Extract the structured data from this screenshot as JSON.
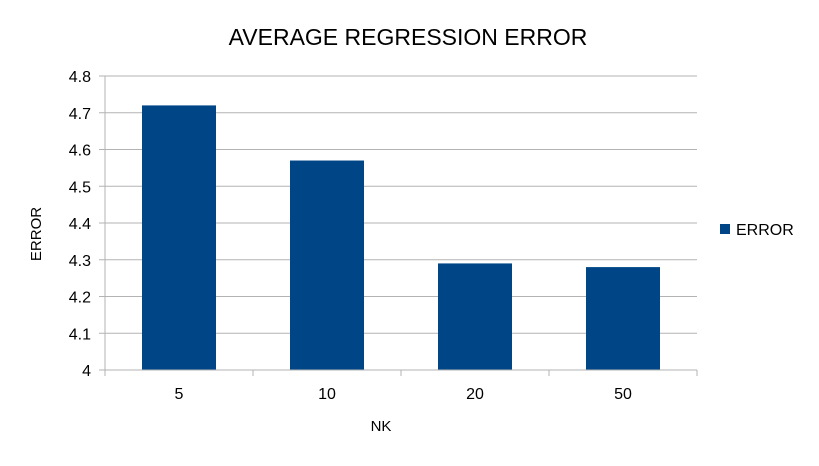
{
  "chart_data": {
    "type": "bar",
    "title": "AVERAGE REGRESSION ERROR",
    "xlabel": "NK",
    "ylabel": "ERROR",
    "categories": [
      "5",
      "10",
      "20",
      "50"
    ],
    "series": [
      {
        "name": "ERROR",
        "values": [
          4.72,
          4.57,
          4.29,
          4.28
        ],
        "color": "#004586"
      }
    ],
    "ylim": [
      4,
      4.8
    ],
    "yticks": [
      "4",
      "4.1",
      "4.2",
      "4.3",
      "4.4",
      "4.5",
      "4.6",
      "4.7",
      "4.8"
    ],
    "grid": true,
    "legend_position": "right"
  }
}
